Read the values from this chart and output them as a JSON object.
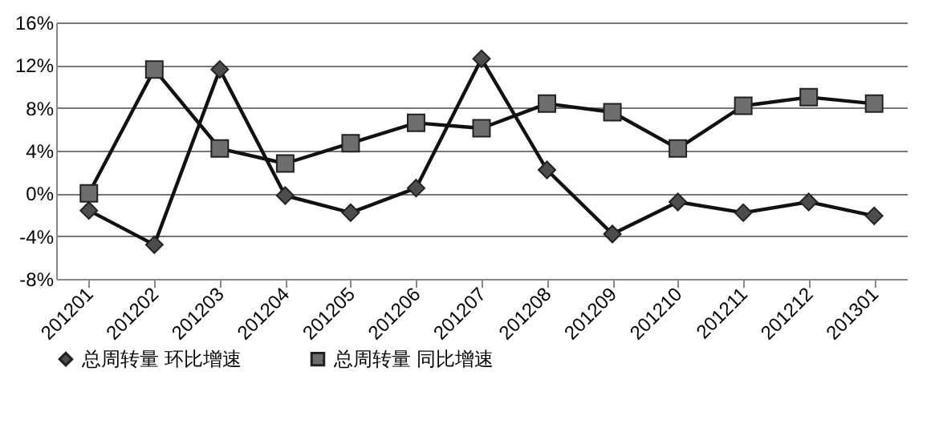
{
  "chart_data": {
    "type": "line",
    "categories": [
      "201201",
      "201202",
      "201203",
      "201204",
      "201205",
      "201206",
      "201207",
      "201208",
      "201209",
      "201210",
      "201211",
      "201212",
      "201301"
    ],
    "series": [
      {
        "name": "总周转量 环比增速",
        "color": "#4d4d4d",
        "marker": "diamond",
        "values": [
          -1.6,
          -4.8,
          11.6,
          -0.2,
          -1.8,
          0.5,
          12.6,
          2.2,
          -3.8,
          -0.8,
          -1.8,
          -0.8,
          -2.1
        ]
      },
      {
        "name": "总周转量 同比增速",
        "color": "#6e6e6e",
        "marker": "square",
        "values": [
          0,
          11.6,
          4.2,
          2.8,
          4.7,
          6.6,
          6.1,
          8.4,
          7.6,
          4.2,
          8.2,
          9.0,
          8.4
        ]
      }
    ],
    "ylim": [
      -8,
      16
    ],
    "yticks": [
      {
        "value": -8,
        "label": "-8%"
      },
      {
        "value": -4,
        "label": "-4%"
      },
      {
        "value": 0,
        "label": "0%"
      },
      {
        "value": 4,
        "label": "4%"
      },
      {
        "value": 8,
        "label": "8%"
      },
      {
        "value": 12,
        "label": "12%"
      },
      {
        "value": 16,
        "label": "16%"
      }
    ],
    "grid": "y",
    "legend": "bottom",
    "line_style": "solid"
  }
}
